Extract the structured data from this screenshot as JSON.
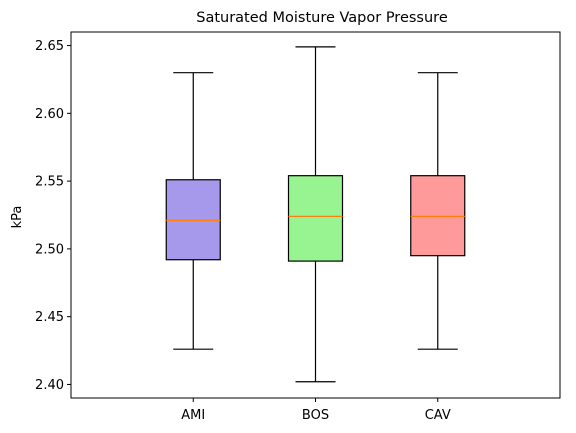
{
  "chart_data": {
    "type": "box",
    "title": "Saturated Moisture Vapor Pressure",
    "xlabel": "",
    "ylabel": "kPa",
    "ylim": [
      2.39,
      2.66
    ],
    "yticks": [
      "2.40",
      "2.45",
      "2.50",
      "2.55",
      "2.60",
      "2.65"
    ],
    "categories": [
      "AMI",
      "BOS",
      "CAV"
    ],
    "boxes": [
      {
        "name": "AMI",
        "whisker_low": 2.426,
        "q1": 2.492,
        "median": 2.521,
        "q3": 2.551,
        "whisker_high": 2.63,
        "color": "#a699eb"
      },
      {
        "name": "BOS",
        "whisker_low": 2.402,
        "q1": 2.491,
        "median": 2.524,
        "q3": 2.554,
        "whisker_high": 2.649,
        "color": "#98f490"
      },
      {
        "name": "CAV",
        "whisker_low": 2.426,
        "q1": 2.495,
        "median": 2.524,
        "q3": 2.554,
        "whisker_high": 2.63,
        "color": "#ff9a9b"
      }
    ],
    "median_color": "#ff7f0e",
    "grid": false,
    "legend": false
  }
}
